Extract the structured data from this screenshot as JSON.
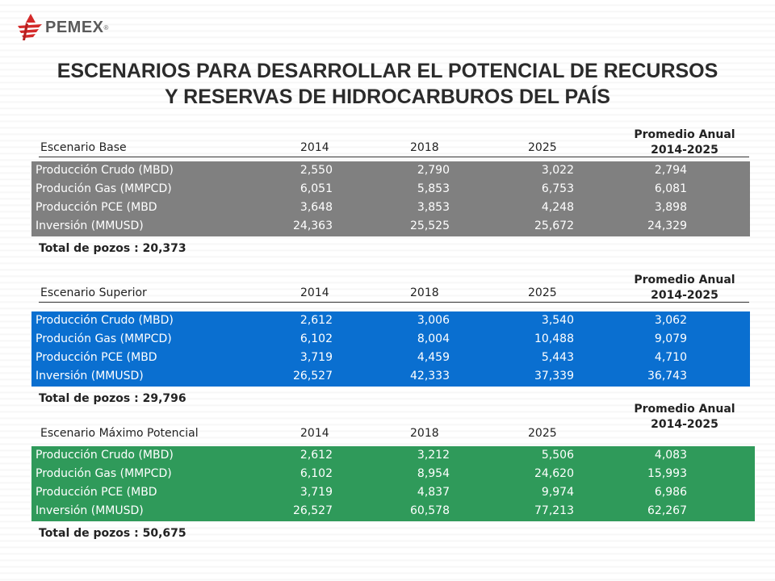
{
  "logo": {
    "name": "PEMEX",
    "reg": "®"
  },
  "title": {
    "line1": "ESCENARIOS PARA DESARROLLAR EL POTENCIAL DE RECURSOS",
    "line2": "Y RESERVAS DE HIDROCARBUROS DEL PAÍS"
  },
  "colors": {
    "base": "#808080",
    "superior": "#0a6fd0",
    "maximo": "#2f9a5a"
  },
  "scenarios": [
    {
      "name": "Escenario Base",
      "years": [
        "2014",
        "2018",
        "2025"
      ],
      "avg_label_1": "Promedio Anual",
      "avg_label_2": "2014-2025",
      "rows": [
        {
          "label": "Producción Crudo (MBD)",
          "v2014": "2,550",
          "v2018": "2,790",
          "v2025": "3,022",
          "avg": "2,794"
        },
        {
          "label": "Produción Gas (MMPCD)",
          "v2014": "6,051",
          "v2018": "5,853",
          "v2025": "6,753",
          "avg": "6,081"
        },
        {
          "label": "Producción PCE (MBD",
          "v2014": "3,648",
          "v2018": "3,853",
          "v2025": "4,248",
          "avg": "3,898"
        },
        {
          "label": "Inversión (MMUSD)",
          "v2014": "24,363",
          "v2018": "25,525",
          "v2025": "25,672",
          "avg": "24,329"
        }
      ],
      "total": "Total de pozos : 20,373"
    },
    {
      "name": "Escenario Superior",
      "years": [
        "2014",
        "2018",
        "2025"
      ],
      "avg_label_1": "Promedio Anual",
      "avg_label_2": "2014-2025",
      "rows": [
        {
          "label": "Producción Crudo (MBD)",
          "v2014": "2,612",
          "v2018": "3,006",
          "v2025": "3,540",
          "avg": "3,062"
        },
        {
          "label": "Produción Gas (MMPCD)",
          "v2014": "6,102",
          "v2018": "8,004",
          "v2025": "10,488",
          "avg": "9,079"
        },
        {
          "label": "Producción PCE (MBD",
          "v2014": "3,719",
          "v2018": "4,459",
          "v2025": "5,443",
          "avg": "4,710"
        },
        {
          "label": "Inversión (MMUSD)",
          "v2014": "26,527",
          "v2018": "42,333",
          "v2025": "37,339",
          "avg": "36,743"
        }
      ],
      "total": "Total de pozos : 29,796"
    },
    {
      "name": "Escenario Máximo Potencial",
      "years": [
        "2014",
        "2018",
        "2025"
      ],
      "avg_label_1": "Promedio Anual",
      "avg_label_2": "2014-2025",
      "rows": [
        {
          "label": "Producción Crudo (MBD)",
          "v2014": "2,612",
          "v2018": "3,212",
          "v2025": "5,506",
          "avg": "4,083"
        },
        {
          "label": "Produción Gas (MMPCD)",
          "v2014": "6,102",
          "v2018": "8,954",
          "v2025": "24,620",
          "avg": "15,993"
        },
        {
          "label": "Producción PCE (MBD",
          "v2014": "3,719",
          "v2018": "4,837",
          "v2025": "9,974",
          "avg": "6,986"
        },
        {
          "label": "Inversión (MMUSD)",
          "v2014": "26,527",
          "v2018": "60,578",
          "v2025": "77,213",
          "avg": "62,267"
        }
      ],
      "total": "Total de pozos : 50,675"
    }
  ]
}
